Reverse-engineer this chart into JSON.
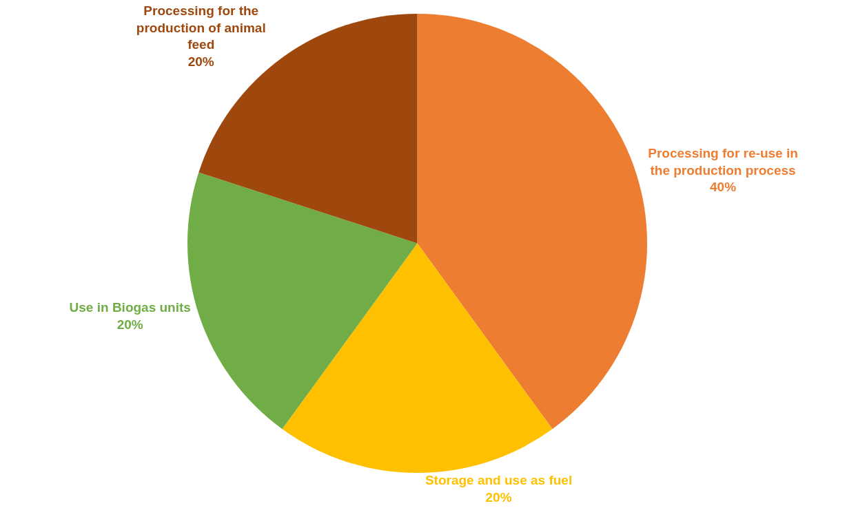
{
  "chart_data": {
    "type": "pie",
    "categories": [
      "Processing for re-use in the production process",
      "Storage and use as fuel",
      "Use in Biogas units",
      "Processing for the production of animal feed"
    ],
    "values": [
      40,
      20,
      20,
      20
    ],
    "value_labels": [
      "40%",
      "20%",
      "20%",
      "20%"
    ],
    "colors": [
      "#ed7d31",
      "#ffc000",
      "#70ad47",
      "#9e480e"
    ],
    "legend": false
  }
}
